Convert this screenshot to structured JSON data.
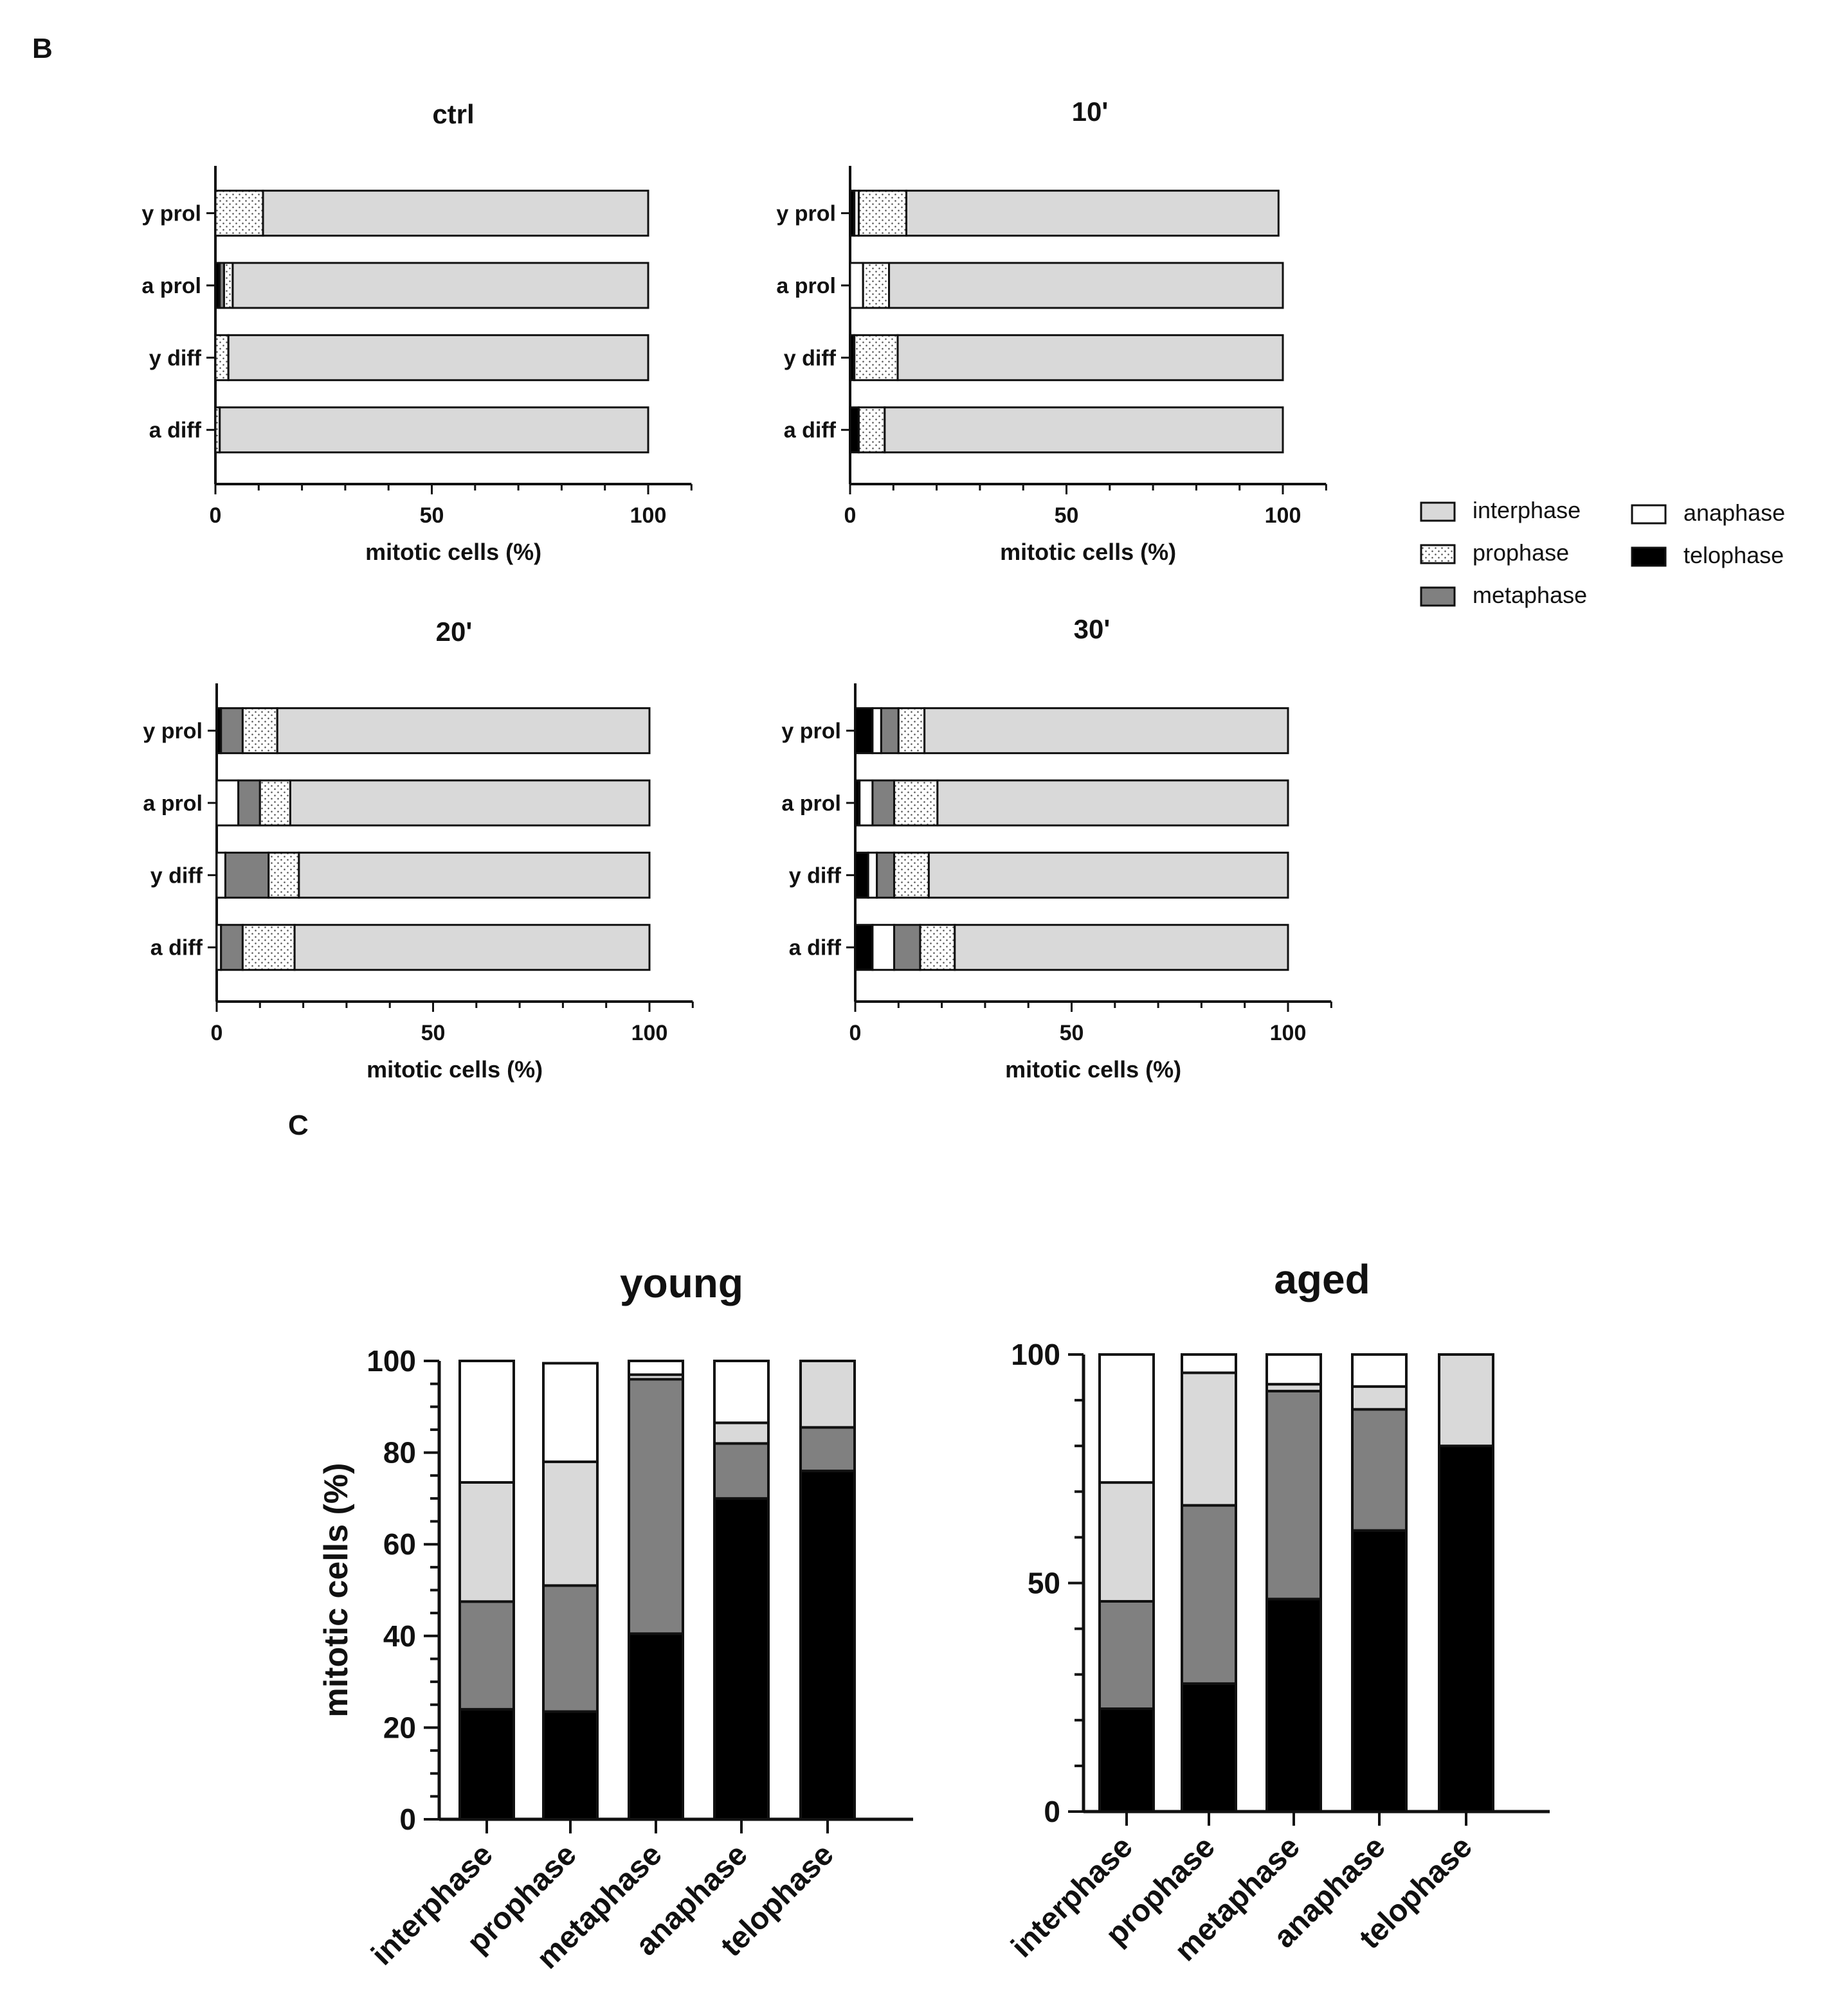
{
  "panels": {
    "b_label": "B",
    "c_label": "C"
  },
  "legend": [
    {
      "label": "interphase",
      "style": "interphase"
    },
    {
      "label": "prophase",
      "style": "prophase"
    },
    {
      "label": "metaphase",
      "style": "metaphase"
    },
    {
      "label": "anaphase",
      "style": "anaphase"
    },
    {
      "label": "telophase",
      "style": "telophase"
    }
  ],
  "colors": {
    "interphase": "#d9d9d9",
    "metaphase": "#808080",
    "anaphase": "#ffffff",
    "telophase": "#000000",
    "prophase_dot": "#555555"
  },
  "chart_data": [
    {
      "type": "bar",
      "orientation": "horizontal",
      "stacked": true,
      "title": "ctrl",
      "xlabel": "mitotic cells (%)",
      "xlim": [
        0,
        110
      ],
      "xticks": [
        0,
        50,
        100
      ],
      "categories": [
        "y prol",
        "a prol",
        "y diff",
        "a diff"
      ],
      "series": [
        {
          "name": "telophase",
          "values": [
            0,
            1,
            0,
            0
          ]
        },
        {
          "name": "metaphase",
          "values": [
            0,
            1,
            0,
            0
          ]
        },
        {
          "name": "prophase",
          "values": [
            11,
            2,
            3,
            1
          ]
        },
        {
          "name": "interphase",
          "values": [
            89,
            96,
            97,
            99
          ]
        }
      ]
    },
    {
      "type": "bar",
      "orientation": "horizontal",
      "stacked": true,
      "title": "10'",
      "xlabel": "mitotic cells (%)",
      "xlim": [
        0,
        110
      ],
      "xticks": [
        0,
        50,
        100
      ],
      "categories": [
        "y prol",
        "a prol",
        "y diff",
        "a diff"
      ],
      "series": [
        {
          "name": "telophase",
          "values": [
            1,
            0,
            1,
            2
          ]
        },
        {
          "name": "anaphase",
          "values": [
            1,
            3,
            0,
            0
          ]
        },
        {
          "name": "metaphase",
          "values": [
            0,
            0,
            0,
            0
          ]
        },
        {
          "name": "prophase",
          "values": [
            11,
            6,
            10,
            6
          ]
        },
        {
          "name": "interphase",
          "values": [
            86,
            91,
            89,
            92
          ]
        }
      ]
    },
    {
      "type": "bar",
      "orientation": "horizontal",
      "stacked": true,
      "title": "20'",
      "xlabel": "mitotic cells (%)",
      "xlim": [
        0,
        110
      ],
      "xticks": [
        0,
        50,
        100
      ],
      "categories": [
        "y prol",
        "a prol",
        "y diff",
        "a diff"
      ],
      "series": [
        {
          "name": "telophase",
          "values": [
            1,
            0,
            0,
            0
          ]
        },
        {
          "name": "anaphase",
          "values": [
            0,
            5,
            2,
            1
          ]
        },
        {
          "name": "metaphase",
          "values": [
            5,
            5,
            10,
            5
          ]
        },
        {
          "name": "prophase",
          "values": [
            8,
            7,
            7,
            12
          ]
        },
        {
          "name": "interphase",
          "values": [
            86,
            83,
            81,
            82
          ]
        }
      ]
    },
    {
      "type": "bar",
      "orientation": "horizontal",
      "stacked": true,
      "title": "30'",
      "xlabel": "mitotic cells (%)",
      "xlim": [
        0,
        110
      ],
      "xticks": [
        0,
        50,
        100
      ],
      "categories": [
        "y prol",
        "a prol",
        "y diff",
        "a diff"
      ],
      "series": [
        {
          "name": "telophase",
          "values": [
            4,
            1,
            3,
            4
          ]
        },
        {
          "name": "anaphase",
          "values": [
            2,
            3,
            2,
            5
          ]
        },
        {
          "name": "metaphase",
          "values": [
            4,
            5,
            4,
            6
          ]
        },
        {
          "name": "prophase",
          "values": [
            6,
            10,
            8,
            8
          ]
        },
        {
          "name": "interphase",
          "values": [
            84,
            81,
            83,
            77
          ]
        }
      ]
    },
    {
      "type": "bar",
      "orientation": "vertical",
      "stacked": true,
      "title": "young",
      "ylabel": "mitotic cells (%)",
      "ylim": [
        0,
        100
      ],
      "yticks": [
        0,
        20,
        40,
        60,
        80,
        100
      ],
      "categories": [
        "interphase",
        "prophase",
        "metaphase",
        "anaphase",
        "telophase"
      ],
      "series": [
        {
          "name": "telophase",
          "values": [
            24,
            23.5,
            40.5,
            70,
            76
          ]
        },
        {
          "name": "metaphase",
          "values": [
            23.5,
            27.5,
            55.5,
            12,
            9.5
          ]
        },
        {
          "name": "interphase",
          "values": [
            26,
            27,
            1,
            4.5,
            14.5
          ]
        },
        {
          "name": "anaphase",
          "values": [
            26.5,
            21.5,
            3,
            13.5,
            0
          ]
        }
      ]
    },
    {
      "type": "bar",
      "orientation": "vertical",
      "stacked": true,
      "title": "aged",
      "ylabel": "",
      "ylim": [
        0,
        100
      ],
      "yticks": [
        0,
        50,
        100
      ],
      "categories": [
        "interphase",
        "prophase",
        "metaphase",
        "anaphase",
        "telophase"
      ],
      "series": [
        {
          "name": "telophase",
          "values": [
            22.5,
            28,
            46.5,
            61.5,
            80
          ]
        },
        {
          "name": "metaphase",
          "values": [
            23.5,
            39,
            45.5,
            26.5,
            0
          ]
        },
        {
          "name": "interphase",
          "values": [
            26,
            29,
            1.5,
            5,
            20
          ]
        },
        {
          "name": "anaphase",
          "values": [
            28,
            4,
            6.5,
            7,
            0
          ]
        }
      ]
    }
  ]
}
